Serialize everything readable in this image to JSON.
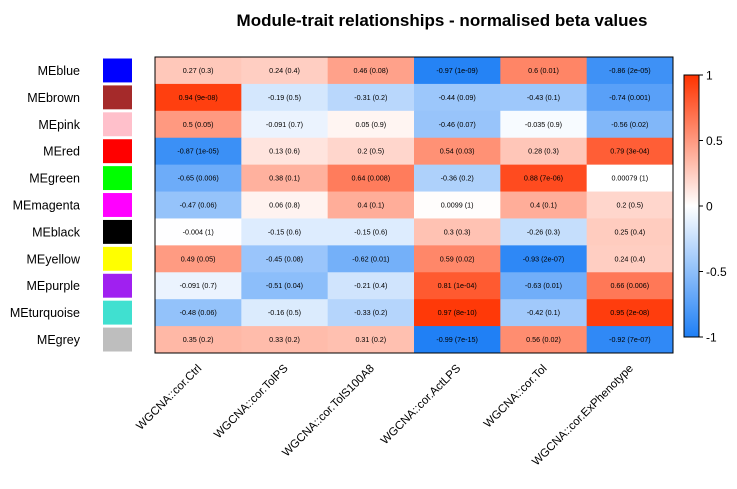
{
  "chart_data": {
    "type": "heatmap",
    "title": "Module-trait relationships - normalised beta values",
    "rows": [
      "MEblue",
      "MEbrown",
      "MEpink",
      "MEred",
      "MEgreen",
      "MEmagenta",
      "MEblack",
      "MEyellow",
      "MEpurple",
      "MEturquoise",
      "MEgrey"
    ],
    "row_colors": [
      "#0000ff",
      "#a52a2a",
      "#ffc0cb",
      "#ff0000",
      "#00ff00",
      "#ff00ff",
      "#000000",
      "#ffff00",
      "#a020f0",
      "#40e0d0",
      "#bebebe"
    ],
    "columns": [
      "WGCNA::cor.Ctrl",
      "WGCNA::cor.TolPS",
      "WGCNA::cor.TolS100A8",
      "WGCNA::cor.ActLPS",
      "WGCNA::cor.Tol",
      "WGCNA::cor.ExPhenotype"
    ],
    "values": [
      [
        0.27,
        0.24,
        0.46,
        -0.97,
        0.6,
        -0.86
      ],
      [
        0.94,
        -0.19,
        -0.31,
        -0.44,
        -0.43,
        -0.74
      ],
      [
        0.5,
        -0.091,
        0.05,
        -0.46,
        -0.035,
        -0.56
      ],
      [
        -0.87,
        0.13,
        0.2,
        0.54,
        0.28,
        0.79
      ],
      [
        -0.65,
        0.38,
        0.64,
        -0.36,
        0.88,
        0.00079
      ],
      [
        -0.47,
        0.06,
        0.4,
        0.0099,
        0.4,
        0.2
      ],
      [
        -0.004,
        -0.15,
        -0.15,
        0.3,
        -0.26,
        0.25
      ],
      [
        0.49,
        -0.45,
        -0.62,
        0.59,
        -0.93,
        0.24
      ],
      [
        -0.091,
        -0.51,
        -0.21,
        0.81,
        -0.63,
        0.66
      ],
      [
        -0.48,
        -0.16,
        -0.33,
        0.97,
        -0.42,
        0.95
      ],
      [
        0.35,
        0.33,
        0.31,
        -0.99,
        0.56,
        -0.92
      ]
    ],
    "labels": [
      [
        "0.27 (0.3)",
        "0.24 (0.4)",
        "0.46 (0.08)",
        "-0.97 (1e-09)",
        "0.6 (0.01)",
        "-0.86 (2e-05)"
      ],
      [
        "0.94 (9e-08)",
        "-0.19 (0.5)",
        "-0.31 (0.2)",
        "-0.44 (0.09)",
        "-0.43 (0.1)",
        "-0.74 (0.001)"
      ],
      [
        "0.5 (0.05)",
        "-0.091 (0.7)",
        "0.05 (0.9)",
        "-0.46 (0.07)",
        "-0.035 (0.9)",
        "-0.56 (0.02)"
      ],
      [
        "-0.87 (1e-05)",
        "0.13 (0.6)",
        "0.2 (0.5)",
        "0.54 (0.03)",
        "0.28 (0.3)",
        "0.79 (3e-04)"
      ],
      [
        "-0.65 (0.006)",
        "0.38 (0.1)",
        "0.64 (0.008)",
        "-0.36 (0.2)",
        "0.88 (7e-06)",
        "0.00079 (1)"
      ],
      [
        "-0.47 (0.06)",
        "0.06 (0.8)",
        "0.4 (0.1)",
        "0.0099 (1)",
        "0.4 (0.1)",
        "0.2 (0.5)"
      ],
      [
        "-0.004 (1)",
        "-0.15 (0.6)",
        "-0.15 (0.6)",
        "0.3 (0.3)",
        "-0.26 (0.3)",
        "0.25 (0.4)"
      ],
      [
        "0.49 (0.05)",
        "-0.45 (0.08)",
        "-0.62 (0.01)",
        "0.59 (0.02)",
        "-0.93 (2e-07)",
        "0.24 (0.4)"
      ],
      [
        "-0.091 (0.7)",
        "-0.51 (0.04)",
        "-0.21 (0.4)",
        "0.81 (1e-04)",
        "-0.63 (0.01)",
        "0.66 (0.006)"
      ],
      [
        "-0.48 (0.06)",
        "-0.16 (0.5)",
        "-0.33 (0.2)",
        "0.97 (8e-10)",
        "-0.42 (0.1)",
        "0.95 (2e-08)"
      ],
      [
        "0.35 (0.2)",
        "0.33 (0.2)",
        "0.31 (0.2)",
        "-0.99 (7e-15)",
        "0.56 (0.02)",
        "-0.92 (7e-07)"
      ]
    ],
    "color_scale": {
      "min": -1,
      "max": 1,
      "low_color": "#1e7ff5",
      "mid_color": "#ffffff",
      "high_color": "#ff3300",
      "ticks": [
        -1,
        -0.5,
        0,
        0.5,
        1
      ],
      "tick_labels": [
        "-1",
        "-0.5",
        "0",
        "0.5",
        "1"
      ]
    },
    "legend_position": "right"
  }
}
